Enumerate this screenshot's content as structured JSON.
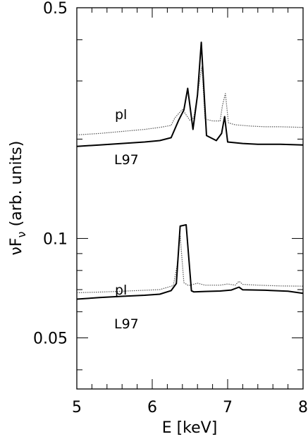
{
  "chart_data": {
    "type": "line",
    "title": "",
    "xlabel": "E [keV]",
    "ylabel_parts": {
      "nu": "ν",
      "F": "F",
      "sub": "ν",
      "rest": " (arb. units)"
    },
    "ylabel": "νFν (arb. units)",
    "xlim": [
      5,
      8
    ],
    "ylim": [
      0.035,
      0.5
    ],
    "yscale": "log",
    "xticks": [
      5,
      6,
      7,
      8
    ],
    "xtick_labels": [
      "5",
      "6",
      "7",
      "8"
    ],
    "yticks": [
      0.05,
      0.1,
      0.5
    ],
    "ytick_labels": [
      "0.05",
      "0.1",
      "0.5"
    ],
    "grid": false,
    "series": [
      {
        "name": "pl",
        "group": "upper",
        "style": "dotted",
        "color": "#555555",
        "x": [
          5.0,
          5.3,
          5.6,
          5.9,
          6.1,
          6.25,
          6.3,
          6.4,
          6.5,
          6.55,
          6.62,
          6.66,
          6.7,
          6.8,
          6.9,
          6.93,
          6.97,
          7.01,
          7.1,
          7.3,
          7.5,
          7.7,
          8.0
        ],
        "y": [
          0.206,
          0.208,
          0.211,
          0.214,
          0.217,
          0.22,
          0.232,
          0.246,
          0.228,
          0.232,
          0.292,
          0.331,
          0.23,
          0.227,
          0.227,
          0.252,
          0.275,
          0.224,
          0.221,
          0.219,
          0.218,
          0.218,
          0.217
        ]
      },
      {
        "name": "L97",
        "group": "upper",
        "style": "solid",
        "color": "#000000",
        "x": [
          5.0,
          5.3,
          5.6,
          5.9,
          6.1,
          6.25,
          6.35,
          6.42,
          6.47,
          6.54,
          6.6,
          6.65,
          6.72,
          6.85,
          6.92,
          6.96,
          7.0,
          7.2,
          7.4,
          7.7,
          8.0
        ],
        "y": [
          0.19,
          0.192,
          0.194,
          0.196,
          0.198,
          0.202,
          0.228,
          0.245,
          0.285,
          0.214,
          0.272,
          0.393,
          0.205,
          0.198,
          0.208,
          0.234,
          0.196,
          0.194,
          0.193,
          0.193,
          0.192
        ]
      },
      {
        "name": "pl",
        "group": "lower",
        "style": "dotted",
        "color": "#555555",
        "x": [
          5.0,
          5.3,
          5.6,
          5.9,
          6.1,
          6.28,
          6.33,
          6.37,
          6.42,
          6.48,
          6.6,
          6.7,
          6.9,
          7.0,
          7.1,
          7.15,
          7.2,
          7.4,
          7.7,
          8.0
        ],
        "y": [
          0.0685,
          0.0688,
          0.0692,
          0.0697,
          0.07,
          0.072,
          0.083,
          0.102,
          0.0735,
          0.072,
          0.0732,
          0.0722,
          0.0722,
          0.0728,
          0.0722,
          0.0742,
          0.0726,
          0.0722,
          0.0718,
          0.0717
        ]
      },
      {
        "name": "L97",
        "group": "lower",
        "style": "solid",
        "color": "#000000",
        "x": [
          5.0,
          5.3,
          5.6,
          5.9,
          6.1,
          6.25,
          6.32,
          6.37,
          6.45,
          6.52,
          6.55,
          6.7,
          6.9,
          7.05,
          7.15,
          7.2,
          7.5,
          7.8,
          8.0
        ],
        "y": [
          0.0655,
          0.0662,
          0.0668,
          0.0673,
          0.0678,
          0.0695,
          0.073,
          0.109,
          0.11,
          0.0694,
          0.0689,
          0.0691,
          0.0693,
          0.0698,
          0.0712,
          0.0699,
          0.0697,
          0.0692,
          0.0682
        ]
      }
    ],
    "annotations": [
      {
        "text": "pl",
        "series_index": 0
      },
      {
        "text": "L97",
        "series_index": 1
      },
      {
        "text": "pl",
        "series_index": 2
      },
      {
        "text": "L97",
        "series_index": 3
      }
    ]
  }
}
